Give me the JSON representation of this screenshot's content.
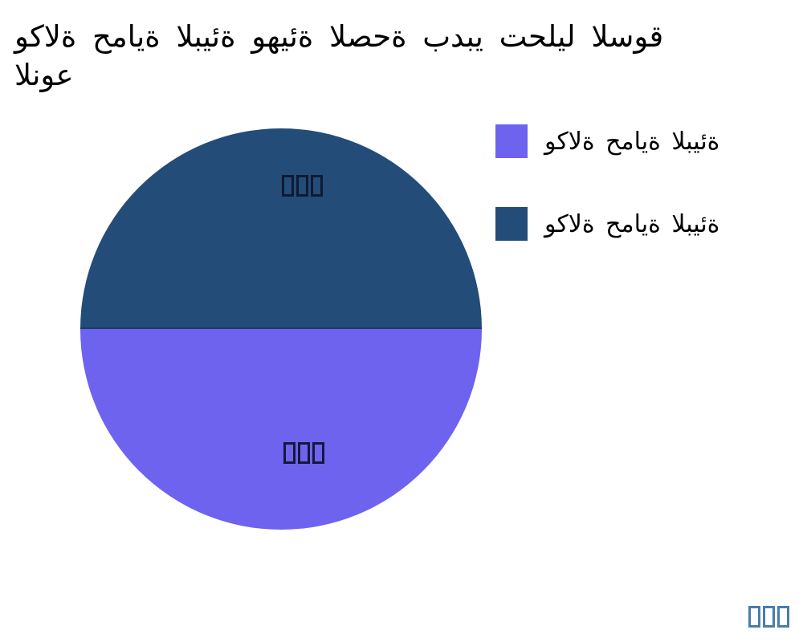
{
  "title": {
    "line1": "وكالة حماية البيئة وهيئة الصحة بدبي تحليل السوق",
    "line2": "النوع",
    "color": "#000000"
  },
  "legend": {
    "position": "right",
    "items": [
      {
        "label": "وكالة حماية البيئة",
        "color": "#6d63ee"
      },
      {
        "label": "وكالة حماية البيئة",
        "color": "#234c79"
      }
    ]
  },
  "pie": {
    "top_color": "#234c79",
    "bottom_color": "#6d63ee",
    "divider_color": "#1c3c64",
    "slice_labels": [
      {
        "glyph_boxes": 3,
        "box_color": "#101a30",
        "note": "unrenderable percentage label on top slice"
      },
      {
        "glyph_boxes": 3,
        "box_color": "#14183a",
        "note": "unrenderable percentage label on bottom slice"
      }
    ]
  },
  "footnote": {
    "glyph_boxes": 3,
    "box_color": "#4a7dab"
  },
  "chart_data": {
    "type": "pie",
    "title": "وكالة حماية البيئة وهيئة الصحة بدبي تحليل السوق النوع",
    "labels": [
      "وكالة حماية البيئة",
      "وكالة حماية البيئة"
    ],
    "values": [
      50,
      50
    ],
    "colors": [
      "#6d63ee",
      "#234c79"
    ],
    "slice_positions": [
      "bottom",
      "top"
    ],
    "slice_label_glyphs": "three missing-glyph boxes per slice (likely Arabic-Indic percent text)",
    "legend_position": "right",
    "background": "#ffffff"
  }
}
